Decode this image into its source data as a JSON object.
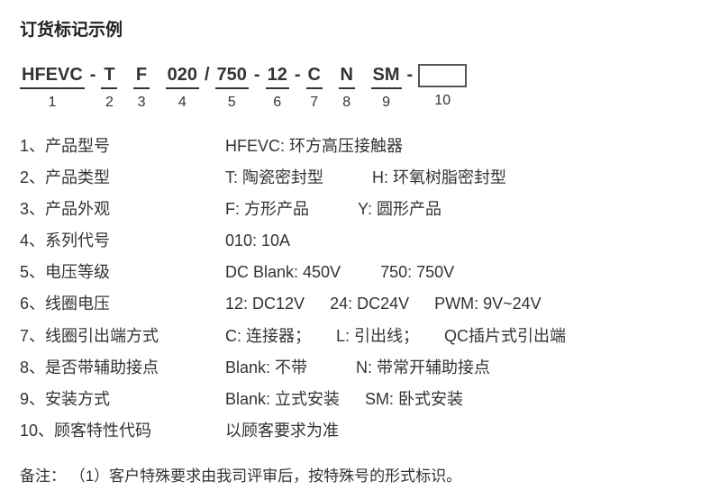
{
  "title": "订货标记示例",
  "code": {
    "segments": [
      {
        "text": "HFEVC",
        "idx": "1"
      },
      {
        "text": "T",
        "idx": "2"
      },
      {
        "text": "F",
        "idx": "3"
      },
      {
        "text": "020",
        "idx": "4"
      },
      {
        "text": "750",
        "idx": "5"
      },
      {
        "text": "12",
        "idx": "6"
      },
      {
        "text": "C",
        "idx": "7"
      },
      {
        "text": "N",
        "idx": "8"
      },
      {
        "text": "SM",
        "idx": "9"
      },
      {
        "text": "",
        "idx": "10"
      }
    ],
    "sep_dash": "-",
    "sep_slash": "/"
  },
  "legend": [
    {
      "n": "1",
      "label": "产品型号",
      "values": [
        {
          "t": "HFEVC: 环方高压接触器",
          "gap": ""
        }
      ]
    },
    {
      "n": "2",
      "label": "产品类型",
      "values": [
        {
          "t": "T: 陶瓷密封型",
          "gap": "gap-l"
        },
        {
          "t": "H: 环氧树脂密封型",
          "gap": ""
        }
      ]
    },
    {
      "n": "3",
      "label": "产品外观",
      "values": [
        {
          "t": "F: 方形产品",
          "gap": "gap-l"
        },
        {
          "t": "Y: 圆形产品",
          "gap": ""
        }
      ]
    },
    {
      "n": "4",
      "label": "系列代号",
      "values": [
        {
          "t": "010: 10A",
          "gap": ""
        }
      ]
    },
    {
      "n": "5",
      "label": "电压等级",
      "values": [
        {
          "t": "DC  Blank: 450V",
          "gap": "gap-m"
        },
        {
          "t": "750: 750V",
          "gap": ""
        }
      ]
    },
    {
      "n": "6",
      "label": "线圈电压",
      "values": [
        {
          "t": "12: DC12V",
          "gap": "gap-s"
        },
        {
          "t": "24: DC24V",
          "gap": "gap-s"
        },
        {
          "t": "PWM: 9V~24V",
          "gap": ""
        }
      ]
    },
    {
      "n": "7",
      "label": "线圈引出端方式",
      "values": [
        {
          "t": "C: 连接器；",
          "gap": "gap-s"
        },
        {
          "t": "L: 引出线；",
          "gap": "gap-s"
        },
        {
          "t": "QC插片式引出端",
          "gap": ""
        }
      ]
    },
    {
      "n": "8",
      "label": "是否带辅助接点",
      "values": [
        {
          "t": "Blank: 不带",
          "gap": "gap-l"
        },
        {
          "t": "N: 带常开辅助接点",
          "gap": ""
        }
      ]
    },
    {
      "n": "9",
      "label": "安装方式",
      "values": [
        {
          "t": "Blank: 立式安装",
          "gap": "gap-s"
        },
        {
          "t": "SM: 卧式安装",
          "gap": ""
        }
      ]
    },
    {
      "n": "10",
      "label": "顾客特性代码",
      "values": [
        {
          "t": "以顾客要求为准",
          "gap": ""
        }
      ]
    }
  ],
  "note": "备注： （1）客户特殊要求由我司评审后，按特殊号的形式标识。"
}
